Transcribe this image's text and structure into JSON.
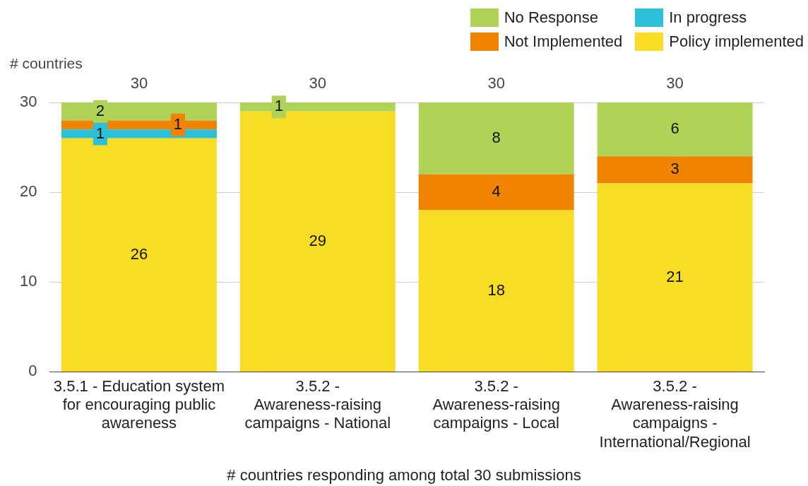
{
  "chart_data": {
    "type": "bar",
    "stacked": true,
    "ylabel": "# countries",
    "xlabel": "# countries responding among total 30 submissions",
    "categories": [
      "3.5.1 - Education system for encouraging public awareness",
      "3.5.2 - Awareness-raising campaigns - National",
      "3.5.2 - Awareness-raising campaigns - Local",
      "3.5.2 - Awareness-raising campaigns - International/Regional"
    ],
    "series": [
      {
        "name": "Policy implemented",
        "color": "#f9dd25",
        "values": [
          26,
          29,
          18,
          21
        ],
        "value_labels": [
          "26",
          "29",
          "18",
          "21"
        ]
      },
      {
        "name": "In progress",
        "color": "#2bbfd8",
        "values": [
          1,
          0,
          0,
          0
        ],
        "value_labels": [
          "1",
          null,
          null,
          null
        ]
      },
      {
        "name": "Not Implemented",
        "color": "#f08300",
        "values": [
          1,
          0,
          4,
          3
        ],
        "value_labels": [
          "1",
          null,
          "4",
          "3"
        ]
      },
      {
        "name": "No Response",
        "color": "#afd357",
        "values": [
          2,
          1,
          8,
          6
        ],
        "value_labels": [
          "2",
          "1",
          "8",
          "6"
        ]
      }
    ],
    "totals": [
      "30",
      "30",
      "30",
      "30"
    ],
    "ylim": [
      0,
      30
    ],
    "yticks": [
      0,
      10,
      20,
      30
    ],
    "grid": "y",
    "legend": "top right"
  }
}
